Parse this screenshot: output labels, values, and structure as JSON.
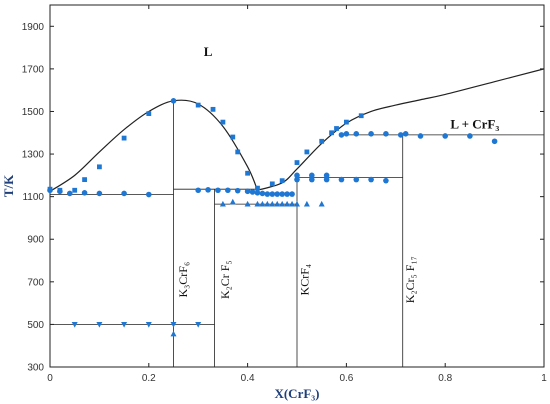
{
  "chart_data": {
    "type": "scatter",
    "xlabel": "X(CrF₃)",
    "ylabel": "T/K",
    "xlim": [
      0,
      1
    ],
    "ylim": [
      300,
      2000
    ],
    "x_ticks": [
      0,
      0.2,
      0.4,
      0.6,
      0.8,
      1
    ],
    "x_tick_labels": [
      "0",
      "0.2",
      "0.4",
      "0.6",
      "0.8",
      "1"
    ],
    "y_ticks": [
      300,
      500,
      700,
      900,
      1100,
      1300,
      1500,
      1700,
      1900
    ],
    "y_tick_labels": [
      "300",
      "500",
      "700",
      "900",
      "1100",
      "1300",
      "1500",
      "1700",
      "1900"
    ],
    "marker_color": "#1f77d4",
    "line_color": "#222222",
    "region_labels": [
      {
        "id": "liquid",
        "text": "L",
        "x": 0.32,
        "y": 1760
      },
      {
        "id": "liquid-crf3",
        "text": "L + CrF₃",
        "x": 0.86,
        "y": 1420
      }
    ],
    "compound_labels": [
      {
        "id": "k3crf6",
        "text": "K₃CrF₆",
        "x": 0.277,
        "y": 710
      },
      {
        "id": "k2crf5",
        "text": "K₂Cr F₅",
        "x": 0.362,
        "y": 710
      },
      {
        "id": "kcrf4",
        "text": "KCrF₄",
        "x": 0.523,
        "y": 710
      },
      {
        "id": "k2cr5f17",
        "text": "K₂Cr₅ F₁₇",
        "x": 0.737,
        "y": 710
      }
    ],
    "phase_boundary_lines": [
      {
        "name": "liquidus-left",
        "style": "curve",
        "points": [
          [
            0,
            1125
          ],
          [
            0.05,
            1200
          ],
          [
            0.1,
            1310
          ],
          [
            0.15,
            1415
          ],
          [
            0.2,
            1500
          ],
          [
            0.25,
            1550
          ],
          [
            0.3,
            1535
          ],
          [
            0.35,
            1430
          ],
          [
            0.4,
            1240
          ],
          [
            0.42,
            1130
          ]
        ]
      },
      {
        "name": "liquidus-right",
        "style": "curve",
        "points": [
          [
            0.42,
            1130
          ],
          [
            0.47,
            1165
          ],
          [
            0.5,
            1230
          ],
          [
            0.55,
            1350
          ],
          [
            0.6,
            1445
          ],
          [
            0.65,
            1500
          ],
          [
            0.7,
            1530
          ],
          [
            0.75,
            1555
          ],
          [
            0.8,
            1580
          ],
          [
            0.9,
            1640
          ],
          [
            1,
            1700
          ]
        ]
      },
      {
        "name": "eutectic-left",
        "points": [
          [
            0,
            1110
          ],
          [
            0.25,
            1110
          ]
        ]
      },
      {
        "name": "compound-k3crf6",
        "points": [
          [
            0.25,
            300
          ],
          [
            0.25,
            1550
          ]
        ]
      },
      {
        "name": "k3crf6-k2crf5-line",
        "points": [
          [
            0.25,
            1135
          ],
          [
            0.42,
            1135
          ]
        ]
      },
      {
        "name": "compound-k2crf5",
        "points": [
          [
            0.333,
            300
          ],
          [
            0.333,
            1135
          ]
        ]
      },
      {
        "name": "k2crf5-kcrf4-line",
        "points": [
          [
            0.333,
            1065
          ],
          [
            0.5,
            1065
          ]
        ]
      },
      {
        "name": "compound-kcrf4",
        "points": [
          [
            0.5,
            300
          ],
          [
            0.5,
            1190
          ]
        ]
      },
      {
        "name": "kcrf4-liquidus-line",
        "points": [
          [
            0.5,
            1190
          ],
          [
            0.714,
            1190
          ]
        ]
      },
      {
        "name": "compound-k2cr5f17",
        "points": [
          [
            0.714,
            300
          ],
          [
            0.714,
            1390
          ]
        ]
      },
      {
        "name": "peritectic-line",
        "points": [
          [
            0.59,
            1390
          ],
          [
            1,
            1390
          ]
        ]
      },
      {
        "name": "transition-line",
        "points": [
          [
            0,
            500
          ],
          [
            0.333,
            500
          ]
        ]
      }
    ],
    "series": [
      {
        "marker": "circle",
        "x": [
          0,
          0.02,
          0.04,
          0.07,
          0.1,
          0.15,
          0.2,
          0.25,
          0.3,
          0.32,
          0.34,
          0.36,
          0.38,
          0.4,
          0.41,
          0.42,
          0.43,
          0.44,
          0.45,
          0.46,
          0.47,
          0.48,
          0.49,
          0.5,
          0.53,
          0.56,
          0.59,
          0.6,
          0.62,
          0.65,
          0.68,
          0.71,
          0.72,
          0.75,
          0.8,
          0.85,
          0.9,
          0.5,
          0.53,
          0.56,
          0.59,
          0.62,
          0.65,
          0.68
        ],
        "y": [
          1130,
          1125,
          1115,
          1118,
          1115,
          1115,
          1110,
          1550,
          1130,
          1132,
          1130,
          1130,
          1128,
          1125,
          1122,
          1118,
          1115,
          1112,
          1112,
          1112,
          1112,
          1112,
          1112,
          1200,
          1200,
          1200,
          1390,
          1395,
          1395,
          1395,
          1395,
          1390,
          1395,
          1385,
          1385,
          1385,
          1360,
          1180,
          1180,
          1180,
          1180,
          1180,
          1180,
          1175
        ]
      },
      {
        "marker": "square",
        "x": [
          0,
          0.02,
          0.05,
          0.07,
          0.1,
          0.15,
          0.2,
          0.3,
          0.33,
          0.35,
          0.37,
          0.38,
          0.4,
          0.42,
          0.45,
          0.47,
          0.5,
          0.52,
          0.55,
          0.57,
          0.58,
          0.6,
          0.63
        ],
        "y": [
          1135,
          1130,
          1130,
          1180,
          1240,
          1375,
          1490,
          1530,
          1510,
          1450,
          1380,
          1310,
          1210,
          1140,
          1160,
          1175,
          1260,
          1310,
          1360,
          1400,
          1420,
          1450,
          1480
        ]
      },
      {
        "marker": "triangle-up",
        "x": [
          0.25,
          0.35,
          0.37,
          0.4,
          0.42,
          0.43,
          0.44,
          0.45,
          0.46,
          0.47,
          0.48,
          0.49,
          0.5,
          0.52,
          0.55
        ],
        "y": [
          455,
          1065,
          1075,
          1065,
          1065,
          1065,
          1065,
          1065,
          1065,
          1065,
          1065,
          1065,
          1065,
          1065,
          1065
        ]
      },
      {
        "marker": "triangle-down",
        "x": [
          0.05,
          0.1,
          0.15,
          0.2,
          0.25,
          0.3
        ],
        "y": [
          500,
          500,
          500,
          500,
          500,
          500
        ]
      }
    ]
  }
}
